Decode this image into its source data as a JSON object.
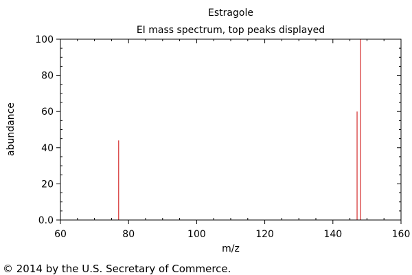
{
  "chart_data": {
    "type": "bar",
    "title": "Estragole",
    "subtitle": "EI mass spectrum, top peaks displayed",
    "xlabel": "m/z",
    "ylabel": "abundance",
    "xlim": [
      60,
      160
    ],
    "ylim": [
      0,
      100
    ],
    "x_ticks": [
      60,
      80,
      100,
      120,
      140,
      160
    ],
    "x_tick_labels": [
      "60",
      "80",
      "100",
      "120",
      "140",
      "160"
    ],
    "y_ticks": [
      0,
      20,
      40,
      60,
      80,
      100
    ],
    "y_tick_labels": [
      "0.0",
      "20",
      "40",
      "60",
      "80",
      "100"
    ],
    "grid": false,
    "peak_color": "#cc0000",
    "peaks": [
      {
        "mz": 77,
        "abundance": 44
      },
      {
        "mz": 147,
        "abundance": 60
      },
      {
        "mz": 148,
        "abundance": 100
      }
    ]
  },
  "credit": "© 2014 by the U.S. Secretary of Commerce."
}
